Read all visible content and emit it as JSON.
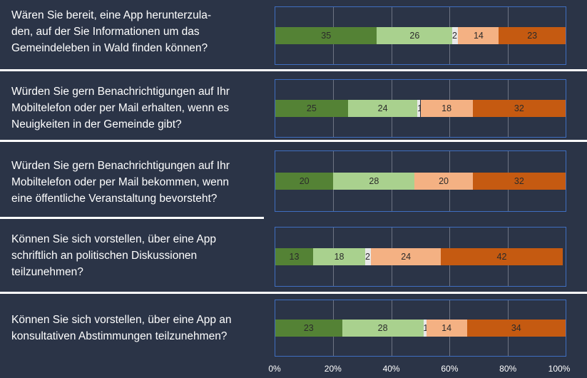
{
  "chart_data": {
    "type": "bar",
    "orientation": "horizontal",
    "stacked": true,
    "xlim": [
      0,
      100
    ],
    "x_ticks": [
      "0%",
      "20%",
      "40%",
      "60%",
      "80%",
      "100%"
    ],
    "grid": true,
    "categories": [
      "Wären Sie bereit, eine App herunterzula-den, auf der Sie Informationen um das Gemeindeleben in Wald finden können?",
      "Würden Sie gern Benachrichtigungen auf Ihr Mobiltelefon oder per Mail erhalten, wenn es Neuigkeiten in der Gemeinde gibt?",
      "Würden Sie gern Benachrichtigungen auf Ihr Mobiltelefon oder per Mail bekommen, wenn eine öffentliche Veranstaltung bevorsteht?",
      "Können Sie sich vorstellen, über eine App schriftlich an politischen Diskussionen teilzunehmen?",
      "Können Sie sich vorstellen, über eine App an konsultativen Abstimmungen teilzunehmen?"
    ],
    "category_lines": [
      [
        "Wären Sie bereit, eine App herunterzula-",
        "den, auf der Sie Informationen um das",
        "Gemeindeleben in Wald finden können?"
      ],
      [
        "Würden Sie gern Benachrichtigungen auf Ihr",
        "Mobiltelefon oder per Mail erhalten,  wenn es",
        "Neuigkeiten in der Gemeinde gibt?"
      ],
      [
        "Würden Sie gern Benachrichtigungen auf Ihr",
        "Mobiltelefon oder per Mail bekommen, wenn",
        "eine öffentliche Veranstaltung bevorsteht?"
      ],
      [
        "Können Sie sich vorstellen, über eine App",
        "schriftlich an politischen Diskussionen",
        "teilzunehmen?"
      ],
      [
        "Können Sie sich vorstellen, über eine App an",
        "konsultativen Abstimmungen teilzunehmen?"
      ]
    ],
    "colors": [
      "#548235",
      "#a9d18e",
      "#e8e8e8",
      "#f4b183",
      "#c55a11"
    ],
    "series": [
      {
        "values": [
          35,
          25,
          20,
          13,
          23
        ]
      },
      {
        "values": [
          26,
          24,
          28,
          18,
          28
        ]
      },
      {
        "values": [
          2,
          1,
          0,
          2,
          1
        ]
      },
      {
        "values": [
          14,
          18,
          20,
          24,
          14
        ]
      },
      {
        "values": [
          23,
          32,
          32,
          42,
          34
        ]
      }
    ]
  }
}
